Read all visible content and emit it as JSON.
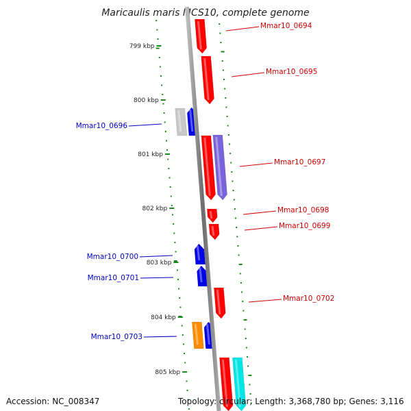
{
  "title": "Maricaulis maris MCS10, complete genome",
  "footer": {
    "accession": "Accession: NC_008347",
    "topology": "Topology: circular; Length: 3,368,780 bp; Genes: 3,116"
  },
  "axis_labels": [
    "799 kbp",
    "800 kbp",
    "801 kbp",
    "802 kbp",
    "803 kbp",
    "804 kbp",
    "805 kbp"
  ],
  "colors": {
    "backbone": "#808080",
    "ticks": "#1a8a1a",
    "red": "#ff0000",
    "blue": "#0000e6",
    "gray": "#c8c8c8",
    "purple": "#7a64dc",
    "orange": "#ff8c00",
    "cyan": "#00e6e6",
    "label_red": "#d00000",
    "label_blue": "#0000c8"
  },
  "genes": [
    {
      "label": "Mmar10_0694",
      "side": "right",
      "color": "red"
    },
    {
      "label": "Mmar10_0695",
      "side": "right",
      "color": "red"
    },
    {
      "label": "Mmar10_0696",
      "side": "left",
      "color": "blue"
    },
    {
      "label": "Mmar10_0697",
      "side": "right",
      "color": "red"
    },
    {
      "label": "Mmar10_0698",
      "side": "right",
      "color": "red"
    },
    {
      "label": "Mmar10_0699",
      "side": "right",
      "color": "red"
    },
    {
      "label": "Mmar10_0700",
      "side": "left",
      "color": "blue"
    },
    {
      "label": "Mmar10_0701",
      "side": "left",
      "color": "blue"
    },
    {
      "label": "Mmar10_0702",
      "side": "right",
      "color": "red"
    },
    {
      "label": "Mmar10_0703",
      "side": "left",
      "color": "blue"
    }
  ]
}
